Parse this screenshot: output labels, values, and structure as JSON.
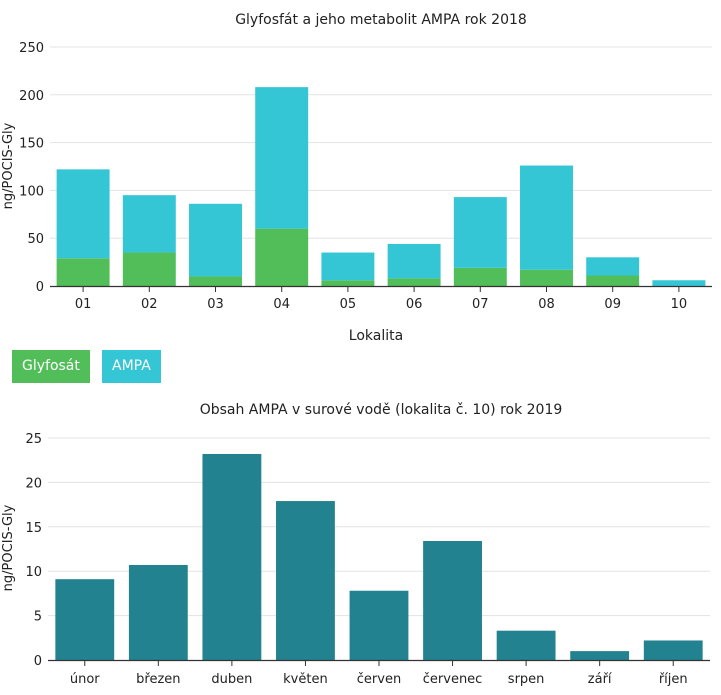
{
  "chart_data": [
    {
      "type": "bar",
      "stacked": true,
      "title": "Glyfosfát a jeho metabolit AMPA rok 2018",
      "xlabel": "Lokalita",
      "ylabel": "ng/POCIS-Gly",
      "ylim": [
        0,
        250
      ],
      "yticks": [
        0,
        50,
        100,
        150,
        200,
        250
      ],
      "categories": [
        "01",
        "02",
        "03",
        "04",
        "05",
        "06",
        "07",
        "08",
        "09",
        "10"
      ],
      "series": [
        {
          "name": "Glyfosát",
          "color": "#52be5a",
          "values": [
            29,
            35,
            10,
            60,
            6,
            8,
            19,
            17,
            11,
            0
          ]
        },
        {
          "name": "AMPA",
          "color": "#34c6d4",
          "values": [
            93,
            60,
            76,
            148,
            29,
            36,
            74,
            109,
            19,
            6
          ]
        }
      ],
      "legend": [
        "Glyfosát",
        "AMPA"
      ],
      "legend_position": "bottom-left"
    },
    {
      "type": "bar",
      "title": "Obsah AMPA v surové vodě (lokalita č. 10) rok 2019",
      "xlabel": "",
      "ylabel": "ng/POCIS-Gly",
      "ylim": [
        0,
        25
      ],
      "yticks": [
        0,
        5,
        10,
        15,
        20,
        25
      ],
      "categories": [
        "únor",
        "březen",
        "duben",
        "květen",
        "červen",
        "červenec",
        "srpen",
        "září",
        "říjen"
      ],
      "series": [
        {
          "name": "AMPA",
          "color": "#23828f",
          "values": [
            9.1,
            10.7,
            23.2,
            17.9,
            7.8,
            13.4,
            3.3,
            1.0,
            2.2
          ]
        }
      ]
    }
  ]
}
